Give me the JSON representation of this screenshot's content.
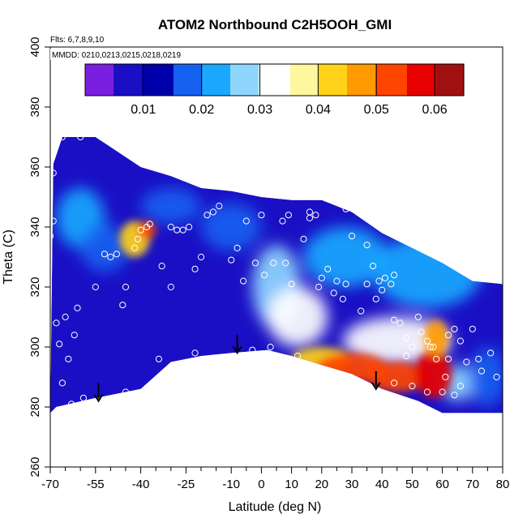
{
  "chart_data": {
    "type": "heatmap",
    "title": "ATOM2 Northbound C2H5OOH_GMI",
    "notes": [
      "Flts: 6,7,8,9,10",
      "MMDD: 0210,0213,0215,0218,0219"
    ],
    "xlabel": "Latitude (deg N)",
    "ylabel": "Theta (C)",
    "xlim": [
      -70,
      80
    ],
    "ylim": [
      260,
      400
    ],
    "x_ticks": [
      -70,
      -55,
      -40,
      -25,
      -10,
      0,
      10,
      20,
      30,
      40,
      50,
      60,
      70,
      80
    ],
    "x_tick_labels": [
      "-70",
      "-55",
      "-40",
      "-25",
      "-10",
      "0",
      "10",
      "20",
      "30",
      "40",
      "50",
      "60",
      "70",
      "80"
    ],
    "x_minor_ticks": [
      -65,
      -60,
      -50,
      -45,
      -35,
      -30,
      -20,
      -15,
      -5,
      5,
      15,
      25,
      35,
      45,
      55,
      65,
      75
    ],
    "y_ticks": [
      260,
      280,
      300,
      320,
      340,
      360,
      380,
      400
    ],
    "y_tick_labels": [
      "260",
      "280",
      "300",
      "320",
      "340",
      "360",
      "380",
      "400"
    ],
    "colorbar": {
      "range": [
        0,
        0.065
      ],
      "ticks": [
        0.01,
        0.02,
        0.03,
        0.04,
        0.05,
        0.06
      ],
      "tick_labels": [
        "0.01",
        "0.02",
        "0.03",
        "0.04",
        "0.05",
        "0.06"
      ],
      "boundaries": [
        0.005,
        0.01,
        0.015,
        0.02,
        0.025,
        0.03,
        0.035,
        0.04,
        0.045,
        0.05,
        0.055,
        0.06
      ],
      "colors": [
        "#7a1fe0",
        "#1a0fc4",
        "#0000aa",
        "#1560f0",
        "#1aa8ff",
        "#8fd6ff",
        "#ffffff",
        "#fff6a0",
        "#ffd21a",
        "#ff9a00",
        "#ff4500",
        "#e60000",
        "#a01010"
      ]
    },
    "domain_outline": [
      [
        -70,
        278
      ],
      [
        -69,
        361
      ],
      [
        -66,
        370
      ],
      [
        -55,
        370
      ],
      [
        -52,
        368
      ],
      [
        -40,
        360
      ],
      [
        -30,
        357
      ],
      [
        -20,
        353
      ],
      [
        -10,
        352
      ],
      [
        0,
        350
      ],
      [
        10,
        349
      ],
      [
        20,
        349
      ],
      [
        30,
        345
      ],
      [
        40,
        338
      ],
      [
        50,
        333
      ],
      [
        60,
        328
      ],
      [
        70,
        322
      ],
      [
        80,
        321
      ],
      [
        80,
        278
      ],
      [
        60,
        278
      ],
      [
        52,
        282
      ],
      [
        40,
        286
      ],
      [
        30,
        291
      ],
      [
        20,
        294
      ],
      [
        10,
        297
      ],
      [
        2,
        299
      ],
      [
        -10,
        298
      ],
      [
        -20,
        297
      ],
      [
        -30,
        295
      ],
      [
        -40,
        286
      ],
      [
        -55,
        283
      ],
      [
        -68,
        280
      ]
    ],
    "field_features": [
      {
        "lat": -42,
        "theta": 336,
        "value": 0.042,
        "rx": 5,
        "ry": 6
      },
      {
        "lat": -38,
        "theta": 339,
        "value": 0.05,
        "rx": 3,
        "ry": 3
      },
      {
        "lat": -60,
        "theta": 343,
        "value": 0.022,
        "rx": 8,
        "ry": 10
      },
      {
        "lat": -52,
        "theta": 333,
        "value": 0.015,
        "rx": 8,
        "ry": 8
      },
      {
        "lat": -30,
        "theta": 347,
        "value": 0.018,
        "rx": 10,
        "ry": 6
      },
      {
        "lat": -10,
        "theta": 340,
        "value": 0.016,
        "rx": 10,
        "ry": 8
      },
      {
        "lat": 5,
        "theta": 320,
        "value": 0.025,
        "rx": 8,
        "ry": 14
      },
      {
        "lat": 12,
        "theta": 310,
        "value": 0.032,
        "rx": 10,
        "ry": 10
      },
      {
        "lat": 28,
        "theta": 330,
        "value": 0.02,
        "rx": 14,
        "ry": 10
      },
      {
        "lat": 55,
        "theta": 325,
        "value": 0.022,
        "rx": 18,
        "ry": 12
      },
      {
        "lat": 45,
        "theta": 302,
        "value": 0.03,
        "rx": 18,
        "ry": 8
      },
      {
        "lat": 20,
        "theta": 296,
        "value": 0.04,
        "rx": 10,
        "ry": 4
      },
      {
        "lat": 30,
        "theta": 293,
        "value": 0.05,
        "rx": 12,
        "ry": 5
      },
      {
        "lat": 45,
        "theta": 290,
        "value": 0.052,
        "rx": 10,
        "ry": 5
      },
      {
        "lat": 57,
        "theta": 291,
        "value": 0.058,
        "rx": 6,
        "ry": 8
      },
      {
        "lat": 58,
        "theta": 303,
        "value": 0.045,
        "rx": 4,
        "ry": 6
      },
      {
        "lat": 65,
        "theta": 288,
        "value": 0.028,
        "rx": 6,
        "ry": 6
      },
      {
        "lat": 75,
        "theta": 290,
        "value": 0.018,
        "rx": 6,
        "ry": 10
      }
    ],
    "sample_points": [
      [
        -66,
        370
      ],
      [
        -60,
        370
      ],
      [
        -69,
        358
      ],
      [
        -69,
        342
      ],
      [
        -70,
        337
      ],
      [
        -68,
        308
      ],
      [
        -67,
        301
      ],
      [
        -65,
        310
      ],
      [
        -62,
        304
      ],
      [
        -61,
        313
      ],
      [
        -64,
        296
      ],
      [
        -66,
        288
      ],
      [
        -63,
        281
      ],
      [
        -59,
        283
      ],
      [
        -55,
        320
      ],
      [
        -50,
        330
      ],
      [
        -48,
        331
      ],
      [
        -52,
        331
      ],
      [
        -46,
        314
      ],
      [
        -45,
        320
      ],
      [
        -45,
        285
      ],
      [
        -42,
        333
      ],
      [
        -41,
        336
      ],
      [
        -40,
        339
      ],
      [
        -38,
        340
      ],
      [
        -37,
        341
      ],
      [
        -33,
        327
      ],
      [
        -30,
        340
      ],
      [
        -28,
        339
      ],
      [
        -26,
        339
      ],
      [
        -24,
        340
      ],
      [
        -30,
        320
      ],
      [
        -34,
        296
      ],
      [
        -22,
        326
      ],
      [
        -20,
        330
      ],
      [
        -18,
        344
      ],
      [
        -16,
        345
      ],
      [
        -22,
        298
      ],
      [
        -14,
        347
      ],
      [
        -10,
        329
      ],
      [
        -8,
        333
      ],
      [
        -5,
        342
      ],
      [
        -6,
        322
      ],
      [
        -3,
        299
      ],
      [
        -2,
        328
      ],
      [
        0,
        344
      ],
      [
        1,
        324
      ],
      [
        3,
        300
      ],
      [
        4,
        328
      ],
      [
        7,
        342
      ],
      [
        8,
        328
      ],
      [
        9,
        344
      ],
      [
        10,
        321
      ],
      [
        12,
        297
      ],
      [
        14,
        336
      ],
      [
        16,
        343
      ],
      [
        16,
        345
      ],
      [
        18,
        344
      ],
      [
        19,
        320
      ],
      [
        20,
        323
      ],
      [
        22,
        326
      ],
      [
        24,
        318
      ],
      [
        25,
        322
      ],
      [
        27,
        316
      ],
      [
        28,
        346
      ],
      [
        28,
        321
      ],
      [
        30,
        337
      ],
      [
        33,
        312
      ],
      [
        35,
        334
      ],
      [
        35,
        321
      ],
      [
        37,
        327
      ],
      [
        38,
        316
      ],
      [
        39,
        322
      ],
      [
        40,
        319
      ],
      [
        41,
        323
      ],
      [
        43,
        321
      ],
      [
        44,
        324
      ],
      [
        44,
        309
      ],
      [
        46,
        308
      ],
      [
        48,
        303
      ],
      [
        48,
        297
      ],
      [
        50,
        300
      ],
      [
        52,
        310
      ],
      [
        53,
        305
      ],
      [
        55,
        302
      ],
      [
        56,
        300
      ],
      [
        57,
        300
      ],
      [
        58,
        296
      ],
      [
        60,
        285
      ],
      [
        62,
        296
      ],
      [
        62,
        304
      ],
      [
        64,
        306
      ],
      [
        66,
        302
      ],
      [
        68,
        295
      ],
      [
        70,
        306
      ],
      [
        72,
        296
      ],
      [
        73,
        292
      ],
      [
        76,
        298
      ],
      [
        78,
        290
      ],
      [
        80,
        322
      ],
      [
        44,
        288
      ],
      [
        50,
        287
      ],
      [
        55,
        285
      ],
      [
        61,
        290
      ],
      [
        64,
        284
      ],
      [
        66,
        287
      ]
    ],
    "arrows": [
      {
        "lat": -54,
        "theta": 282
      },
      {
        "lat": -8,
        "theta": 298
      },
      {
        "lat": 38,
        "theta": 286
      }
    ]
  }
}
